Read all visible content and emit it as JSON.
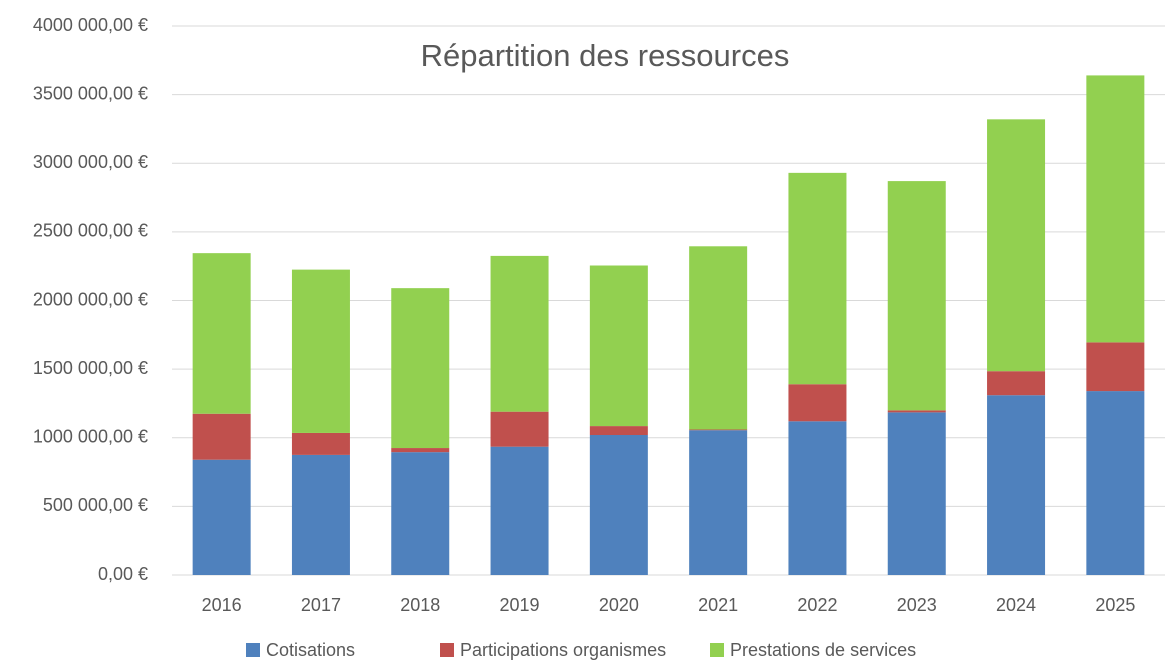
{
  "chart_data": {
    "type": "stacked_bar",
    "title": "Répartition des ressources",
    "categories": [
      "2016",
      "2017",
      "2018",
      "2019",
      "2020",
      "2021",
      "2022",
      "2023",
      "2024",
      "2025"
    ],
    "series": [
      {
        "name": "Cotisations",
        "color": "#4f81bd",
        "values": [
          840000,
          875000,
          895000,
          935000,
          1020000,
          1055000,
          1120000,
          1185000,
          1310000,
          1340000
        ]
      },
      {
        "name": "Participations organismes",
        "color": "#c0504d",
        "values": [
          335000,
          160000,
          30000,
          255000,
          65000,
          5000,
          270000,
          15000,
          175000,
          355000
        ]
      },
      {
        "name": "Prestations de services",
        "color": "#92d050",
        "values": [
          1170000,
          1190000,
          1165000,
          1135000,
          1170000,
          1335000,
          1540000,
          1670000,
          1835000,
          1945000
        ]
      }
    ],
    "ylim": [
      0,
      4000000
    ],
    "yticks": [
      {
        "value": 0,
        "label": "0,00 €"
      },
      {
        "value": 500000,
        "label": "500 000,00 €"
      },
      {
        "value": 1000000,
        "label": "1000 000,00 €"
      },
      {
        "value": 1500000,
        "label": "1500 000,00 €"
      },
      {
        "value": 2000000,
        "label": "2000 000,00 €"
      },
      {
        "value": 2500000,
        "label": "2500 000,00 €"
      },
      {
        "value": 3000000,
        "label": "3000 000,00 €"
      },
      {
        "value": 3500000,
        "label": "3500 000,00 €"
      },
      {
        "value": 4000000,
        "label": "4000 000,00 €"
      }
    ],
    "grid": true,
    "legend": "bottom"
  }
}
